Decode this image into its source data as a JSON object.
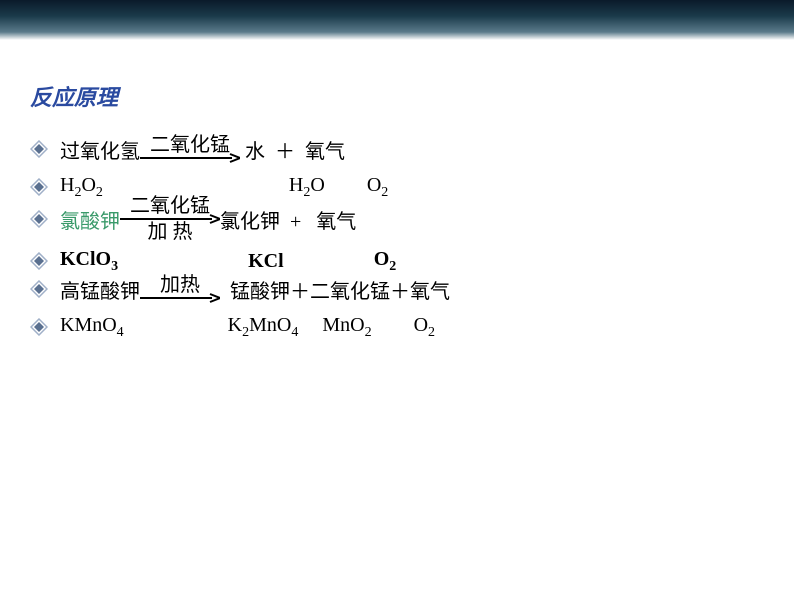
{
  "title": "反应原理",
  "colors": {
    "title_color": "#2a4aa0",
    "text_color": "#000000",
    "highlight_color": "#3a9a6a",
    "bullet_outer": "#a0b0c8",
    "bullet_inner": "#5a7090",
    "arrow_color": "#000000"
  },
  "typography": {
    "title_fontsize": 22,
    "body_fontsize": 20,
    "title_font": "KaiTi",
    "body_font": "SimSun"
  },
  "reactions": [
    {
      "reactant_cn": "过氧化氢",
      "arrow_top": "二氧化锰",
      "arrow_bottom": "",
      "arrow_width": 100,
      "product_cn": " 水  ＋  氧气",
      "reactant_formula": "H2O2",
      "product_formula_parts": [
        "H2O",
        "O2"
      ],
      "formula_gap1": 186,
      "formula_gap2": 42
    },
    {
      "reactant_cn": "氯酸钾",
      "reactant_cn_highlight": true,
      "arrow_top": "二氧化锰",
      "arrow_bottom": "加  热",
      "arrow_width": 100,
      "product_cn": "氯化钾  +   氧气",
      "reactant_formula": "KClO3",
      "reactant_formula_bold": true,
      "product_formula_parts": [
        "KCl",
        "O2"
      ],
      "formula_gap1": 130,
      "formula_gap2": 90
    },
    {
      "reactant_cn": "高锰酸钾",
      "arrow_top": "加热",
      "arrow_bottom": "",
      "arrow_width": 80,
      "product_cn": "  锰酸钾＋二氧化锰＋氧气",
      "reactant_formula": "KMnO4",
      "product_formula_parts": [
        "K2MnO4",
        "MnO2",
        "O2"
      ],
      "formula_gap1": 104,
      "formula_gap2": 24,
      "formula_gap3": 42
    }
  ]
}
